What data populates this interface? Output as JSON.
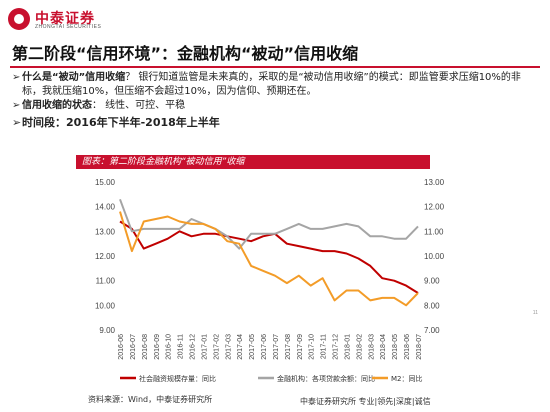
{
  "brand": {
    "name_cn": "中泰证券",
    "name_en": "ZHONGTAI SECURITIES"
  },
  "slide": {
    "title": "第二阶段“信用环境”：金融机构“被动”信用收缩",
    "bullets": [
      {
        "mark": "➢",
        "strong": "什么是“被动”信用收缩",
        "text": "？ 银行知道监管是未来真的，采取的是“被动信用收缩”的模式：即监管要求压缩10%的非标，我就压缩10%，但压缩不会超过10%，因为信仰、预期还在。"
      },
      {
        "mark": "➢",
        "strong": "信用收缩的状态",
        "text": "： 线性、可控、平稳"
      },
      {
        "mark": "➢",
        "strong": "时间段：",
        "text": "2016年下半年-2018年上半年"
      }
    ],
    "chart_title": "图表：第二阶段金融机构“被动信用”收缩",
    "source": "资料来源：Wind，中泰证券研究所",
    "footer": "中泰证券研究所 专业|领先|深度|诚信",
    "page_number": "11"
  },
  "colors": {
    "red": "#c00000",
    "gray": "#a5a5a5",
    "orange": "#f39c28",
    "brand": "#c8102e"
  },
  "chart_data": {
    "type": "line",
    "categories": [
      "2016-06",
      "2016-07",
      "2016-08",
      "2016-09",
      "2016-10",
      "2016-11",
      "2016-12",
      "2017-01",
      "2017-02",
      "2017-03",
      "2017-04",
      "2017-05",
      "2017-06",
      "2017-07",
      "2017-08",
      "2017-09",
      "2017-10",
      "2017-11",
      "2017-12",
      "2018-01",
      "2018-02",
      "2018-03",
      "2018-04",
      "2018-05",
      "2018-06",
      "2018-07"
    ],
    "y_left": {
      "min": 9.0,
      "max": 15.0,
      "ticks": [
        "15.00",
        "14.00",
        "13.00",
        "12.00",
        "11.00",
        "10.00",
        "9.00"
      ]
    },
    "y_right": {
      "min": 7.0,
      "max": 13.0,
      "ticks": [
        "13.00",
        "12.00",
        "11.00",
        "10.00",
        "9.00",
        "8.00",
        "7.00"
      ]
    },
    "series": [
      {
        "name": "社会融资规模存量：同比",
        "axis": "left",
        "color": "#c00000",
        "values": [
          13.4,
          13.1,
          12.3,
          12.5,
          12.7,
          13.0,
          12.8,
          12.9,
          12.9,
          12.8,
          12.7,
          12.6,
          12.8,
          12.9,
          12.5,
          12.4,
          12.3,
          12.2,
          12.2,
          12.1,
          11.9,
          11.6,
          11.1,
          11.0,
          10.8,
          10.5
        ]
      },
      {
        "name": "金融机构：各项贷款余额：同比",
        "axis": "right",
        "color": "#a5a5a5",
        "values": [
          12.3,
          11.0,
          11.1,
          11.1,
          11.1,
          11.1,
          11.5,
          11.3,
          11.1,
          10.8,
          10.3,
          10.9,
          10.9,
          10.9,
          11.1,
          11.3,
          11.1,
          11.1,
          11.2,
          11.3,
          11.2,
          10.8,
          10.8,
          10.7,
          10.7,
          11.2
        ]
      },
      {
        "name": "M2：同比",
        "axis": "right",
        "color": "#f39c28",
        "values": [
          11.8,
          10.2,
          11.4,
          11.5,
          11.6,
          11.4,
          11.3,
          11.3,
          11.1,
          10.6,
          10.5,
          9.6,
          9.4,
          9.2,
          8.9,
          9.2,
          8.8,
          9.1,
          8.2,
          8.6,
          8.6,
          8.2,
          8.3,
          8.3,
          8.0,
          8.5
        ]
      }
    ]
  }
}
